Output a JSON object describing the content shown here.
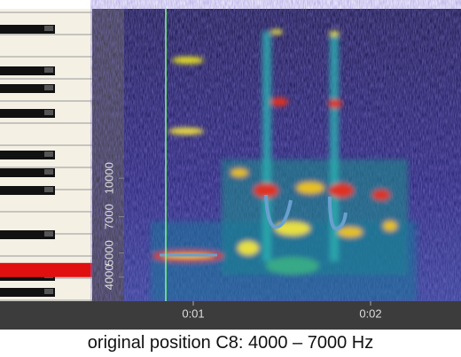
{
  "chart_data": {
    "type": "spectrogram",
    "ylim": [
      3200,
      48000
    ],
    "y_scale": "log",
    "yticks": [
      4000,
      5000,
      7000,
      10000
    ],
    "xlim": [
      0.61,
      2.51
    ],
    "xticks": [
      {
        "value": 1,
        "label": "0:01"
      },
      {
        "value": 2,
        "label": "0:02"
      }
    ],
    "cursor": 0.845,
    "cursor_color": "#7dff7d",
    "highlight_color": "#e01010",
    "caption": "original position C8: 4000 – 7000 Hz"
  }
}
